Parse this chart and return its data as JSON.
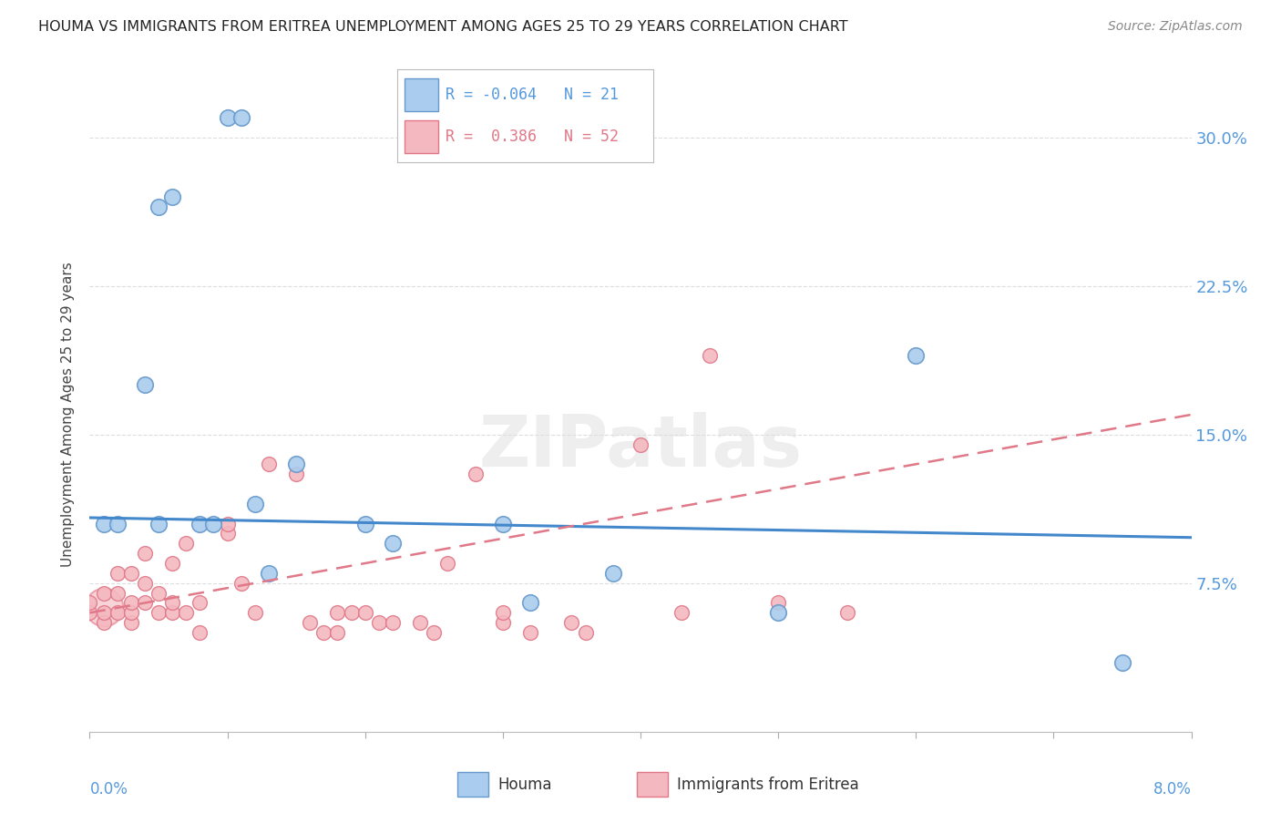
{
  "title": "HOUMA VS IMMIGRANTS FROM ERITREA UNEMPLOYMENT AMONG AGES 25 TO 29 YEARS CORRELATION CHART",
  "source": "Source: ZipAtlas.com",
  "ylabel": "Unemployment Among Ages 25 to 29 years",
  "y_tick_labels": [
    "",
    "7.5%",
    "15.0%",
    "22.5%",
    "30.0%"
  ],
  "y_tick_values": [
    0.0,
    0.075,
    0.15,
    0.225,
    0.3
  ],
  "x_range": [
    0.0,
    0.08
  ],
  "y_range": [
    0.0,
    0.32
  ],
  "legend_blue_R": "-0.064",
  "legend_blue_N": "21",
  "legend_pink_R": "0.386",
  "legend_pink_N": "52",
  "blue_color": "#aaccee",
  "blue_edge": "#6699cc",
  "pink_color": "#f4b8c0",
  "pink_edge": "#e07888",
  "blue_line_color": "#4488cc",
  "pink_line_color": "#e07888",
  "grid_color": "#dddddd",
  "watermark_text": "ZIPatlas",
  "houma_points": [
    [
      0.001,
      0.105
    ],
    [
      0.002,
      0.105
    ],
    [
      0.004,
      0.175
    ],
    [
      0.005,
      0.265
    ],
    [
      0.005,
      0.105
    ],
    [
      0.006,
      0.27
    ],
    [
      0.008,
      0.105
    ],
    [
      0.009,
      0.105
    ],
    [
      0.01,
      0.31
    ],
    [
      0.011,
      0.31
    ],
    [
      0.012,
      0.115
    ],
    [
      0.013,
      0.08
    ],
    [
      0.015,
      0.135
    ],
    [
      0.02,
      0.105
    ],
    [
      0.022,
      0.095
    ],
    [
      0.03,
      0.105
    ],
    [
      0.032,
      0.065
    ],
    [
      0.038,
      0.08
    ],
    [
      0.05,
      0.06
    ],
    [
      0.06,
      0.19
    ],
    [
      0.075,
      0.035
    ]
  ],
  "eritrea_points": [
    [
      0.0,
      0.06
    ],
    [
      0.0,
      0.065
    ],
    [
      0.001,
      0.055
    ],
    [
      0.001,
      0.06
    ],
    [
      0.001,
      0.07
    ],
    [
      0.002,
      0.06
    ],
    [
      0.002,
      0.07
    ],
    [
      0.002,
      0.08
    ],
    [
      0.003,
      0.055
    ],
    [
      0.003,
      0.06
    ],
    [
      0.003,
      0.065
    ],
    [
      0.003,
      0.08
    ],
    [
      0.004,
      0.065
    ],
    [
      0.004,
      0.075
    ],
    [
      0.004,
      0.09
    ],
    [
      0.005,
      0.06
    ],
    [
      0.005,
      0.07
    ],
    [
      0.006,
      0.06
    ],
    [
      0.006,
      0.065
    ],
    [
      0.006,
      0.085
    ],
    [
      0.007,
      0.06
    ],
    [
      0.007,
      0.095
    ],
    [
      0.008,
      0.05
    ],
    [
      0.008,
      0.065
    ],
    [
      0.01,
      0.1
    ],
    [
      0.01,
      0.105
    ],
    [
      0.011,
      0.075
    ],
    [
      0.012,
      0.06
    ],
    [
      0.013,
      0.135
    ],
    [
      0.015,
      0.13
    ],
    [
      0.016,
      0.055
    ],
    [
      0.017,
      0.05
    ],
    [
      0.018,
      0.05
    ],
    [
      0.018,
      0.06
    ],
    [
      0.019,
      0.06
    ],
    [
      0.02,
      0.06
    ],
    [
      0.021,
      0.055
    ],
    [
      0.022,
      0.055
    ],
    [
      0.024,
      0.055
    ],
    [
      0.025,
      0.05
    ],
    [
      0.026,
      0.085
    ],
    [
      0.028,
      0.13
    ],
    [
      0.03,
      0.055
    ],
    [
      0.03,
      0.06
    ],
    [
      0.032,
      0.05
    ],
    [
      0.035,
      0.055
    ],
    [
      0.036,
      0.05
    ],
    [
      0.04,
      0.145
    ],
    [
      0.043,
      0.06
    ],
    [
      0.045,
      0.19
    ],
    [
      0.05,
      0.065
    ],
    [
      0.055,
      0.06
    ]
  ],
  "blue_trend": [
    0.108,
    0.098
  ],
  "pink_trend": [
    0.06,
    0.16
  ]
}
